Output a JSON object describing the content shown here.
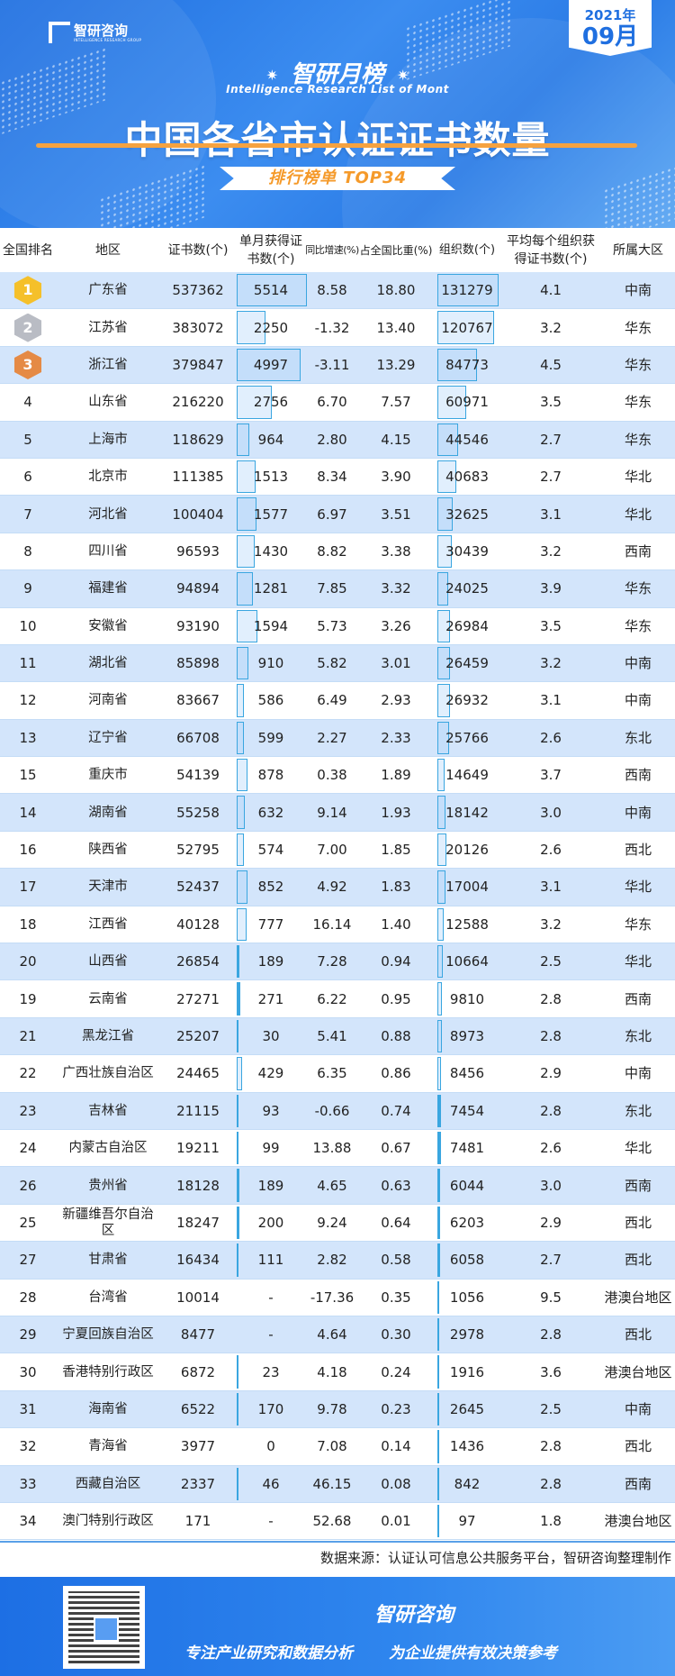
{
  "header": {
    "logo_name": "智研咨询",
    "logo_sub": "INTELLIGENCE RESEARCH GROUP",
    "badge_year": "2021年",
    "badge_month": "09月",
    "list_title": "智研月榜",
    "list_subtitle": "Intelligence Research List of Mont",
    "title": "中国各省市认证证书数量",
    "ribbon": "排行榜单  TOP34"
  },
  "columns": [
    "全国排名",
    "地区",
    "证书数(个)",
    "单月获得证书数(个)",
    "同比增速(%)",
    "占全国比重(%)",
    "组织数(个)",
    "平均每个组织获得证书数(个)",
    "所属大区"
  ],
  "column_lines": [
    [
      "全国排名"
    ],
    [
      "地区"
    ],
    [
      "证书数(个)"
    ],
    [
      "单月获得证",
      "书数(个)"
    ],
    [
      "同比增",
      "速(%)"
    ],
    [
      "占全国比重",
      "(%)"
    ],
    [
      "组织数",
      "(个)"
    ],
    [
      "平均每个组织获",
      "得证书数(个)"
    ],
    [
      "所属大区"
    ]
  ],
  "medal_colors": [
    "#f5c02a",
    "#b9bcc4",
    "#e58a45"
  ],
  "rows": [
    {
      "rank": "1",
      "region": "广东省",
      "certs": "537362",
      "monthly": "5514",
      "yoy": "8.58",
      "share": "18.80",
      "orgs": "131279",
      "avg": "4.1",
      "area": "中南"
    },
    {
      "rank": "2",
      "region": "江苏省",
      "certs": "383072",
      "monthly": "2250",
      "yoy": "-1.32",
      "share": "13.40",
      "orgs": "120767",
      "avg": "3.2",
      "area": "华东"
    },
    {
      "rank": "3",
      "region": "浙江省",
      "certs": "379847",
      "monthly": "4997",
      "yoy": "-3.11",
      "share": "13.29",
      "orgs": "84773",
      "avg": "4.5",
      "area": "华东"
    },
    {
      "rank": "4",
      "region": "山东省",
      "certs": "216220",
      "monthly": "2756",
      "yoy": "6.70",
      "share": "7.57",
      "orgs": "60971",
      "avg": "3.5",
      "area": "华东"
    },
    {
      "rank": "5",
      "region": "上海市",
      "certs": "118629",
      "monthly": "964",
      "yoy": "2.80",
      "share": "4.15",
      "orgs": "44546",
      "avg": "2.7",
      "area": "华东"
    },
    {
      "rank": "6",
      "region": "北京市",
      "certs": "111385",
      "monthly": "1513",
      "yoy": "8.34",
      "share": "3.90",
      "orgs": "40683",
      "avg": "2.7",
      "area": "华北"
    },
    {
      "rank": "7",
      "region": "河北省",
      "certs": "100404",
      "monthly": "1577",
      "yoy": "6.97",
      "share": "3.51",
      "orgs": "32625",
      "avg": "3.1",
      "area": "华北"
    },
    {
      "rank": "8",
      "region": "四川省",
      "certs": "96593",
      "monthly": "1430",
      "yoy": "8.82",
      "share": "3.38",
      "orgs": "30439",
      "avg": "3.2",
      "area": "西南"
    },
    {
      "rank": "9",
      "region": "福建省",
      "certs": "94894",
      "monthly": "1281",
      "yoy": "7.85",
      "share": "3.32",
      "orgs": "24025",
      "avg": "3.9",
      "area": "华东"
    },
    {
      "rank": "10",
      "region": "安徽省",
      "certs": "93190",
      "monthly": "1594",
      "yoy": "5.73",
      "share": "3.26",
      "orgs": "26984",
      "avg": "3.5",
      "area": "华东"
    },
    {
      "rank": "11",
      "region": "湖北省",
      "certs": "85898",
      "monthly": "910",
      "yoy": "5.82",
      "share": "3.01",
      "orgs": "26459",
      "avg": "3.2",
      "area": "中南"
    },
    {
      "rank": "12",
      "region": "河南省",
      "certs": "83667",
      "monthly": "586",
      "yoy": "6.49",
      "share": "2.93",
      "orgs": "26932",
      "avg": "3.1",
      "area": "中南"
    },
    {
      "rank": "13",
      "region": "辽宁省",
      "certs": "66708",
      "monthly": "599",
      "yoy": "2.27",
      "share": "2.33",
      "orgs": "25766",
      "avg": "2.6",
      "area": "东北"
    },
    {
      "rank": "15",
      "region": "重庆市",
      "certs": "54139",
      "monthly": "878",
      "yoy": "0.38",
      "share": "1.89",
      "orgs": "14649",
      "avg": "3.7",
      "area": "西南"
    },
    {
      "rank": "14",
      "region": "湖南省",
      "certs": "55258",
      "monthly": "632",
      "yoy": "9.14",
      "share": "1.93",
      "orgs": "18142",
      "avg": "3.0",
      "area": "中南"
    },
    {
      "rank": "16",
      "region": "陕西省",
      "certs": "52795",
      "monthly": "574",
      "yoy": "7.00",
      "share": "1.85",
      "orgs": "20126",
      "avg": "2.6",
      "area": "西北"
    },
    {
      "rank": "17",
      "region": "天津市",
      "certs": "52437",
      "monthly": "852",
      "yoy": "4.92",
      "share": "1.83",
      "orgs": "17004",
      "avg": "3.1",
      "area": "华北"
    },
    {
      "rank": "18",
      "region": "江西省",
      "certs": "40128",
      "monthly": "777",
      "yoy": "16.14",
      "share": "1.40",
      "orgs": "12588",
      "avg": "3.2",
      "area": "华东"
    },
    {
      "rank": "20",
      "region": "山西省",
      "certs": "26854",
      "monthly": "189",
      "yoy": "7.28",
      "share": "0.94",
      "orgs": "10664",
      "avg": "2.5",
      "area": "华北"
    },
    {
      "rank": "19",
      "region": "云南省",
      "certs": "27271",
      "monthly": "271",
      "yoy": "6.22",
      "share": "0.95",
      "orgs": "9810",
      "avg": "2.8",
      "area": "西南"
    },
    {
      "rank": "21",
      "region": "黑龙江省",
      "certs": "25207",
      "monthly": "30",
      "yoy": "5.41",
      "share": "0.88",
      "orgs": "8973",
      "avg": "2.8",
      "area": "东北"
    },
    {
      "rank": "22",
      "region": "广西壮族自治区",
      "certs": "24465",
      "monthly": "429",
      "yoy": "6.35",
      "share": "0.86",
      "orgs": "8456",
      "avg": "2.9",
      "area": "中南"
    },
    {
      "rank": "23",
      "region": "吉林省",
      "certs": "21115",
      "monthly": "93",
      "yoy": "-0.66",
      "share": "0.74",
      "orgs": "7454",
      "avg": "2.8",
      "area": "东北"
    },
    {
      "rank": "24",
      "region": "内蒙古自治区",
      "certs": "19211",
      "monthly": "99",
      "yoy": "13.88",
      "share": "0.67",
      "orgs": "7481",
      "avg": "2.6",
      "area": "华北"
    },
    {
      "rank": "26",
      "region": "贵州省",
      "certs": "18128",
      "monthly": "189",
      "yoy": "4.65",
      "share": "0.63",
      "orgs": "6044",
      "avg": "3.0",
      "area": "西南"
    },
    {
      "rank": "25",
      "region": "新疆维吾尔自治区",
      "certs": "18247",
      "monthly": "200",
      "yoy": "9.24",
      "share": "0.64",
      "orgs": "6203",
      "avg": "2.9",
      "area": "西北"
    },
    {
      "rank": "27",
      "region": "甘肃省",
      "certs": "16434",
      "monthly": "111",
      "yoy": "2.82",
      "share": "0.58",
      "orgs": "6058",
      "avg": "2.7",
      "area": "西北"
    },
    {
      "rank": "28",
      "region": "台湾省",
      "certs": "10014",
      "monthly": "-",
      "yoy": "-17.36",
      "share": "0.35",
      "orgs": "1056",
      "avg": "9.5",
      "area": "港澳台地区"
    },
    {
      "rank": "29",
      "region": "宁夏回族自治区",
      "certs": "8477",
      "monthly": "-",
      "yoy": "4.64",
      "share": "0.30",
      "orgs": "2978",
      "avg": "2.8",
      "area": "西北"
    },
    {
      "rank": "30",
      "region": "香港特别行政区",
      "certs": "6872",
      "monthly": "23",
      "yoy": "4.18",
      "share": "0.24",
      "orgs": "1916",
      "avg": "3.6",
      "area": "港澳台地区"
    },
    {
      "rank": "31",
      "region": "海南省",
      "certs": "6522",
      "monthly": "170",
      "yoy": "9.78",
      "share": "0.23",
      "orgs": "2645",
      "avg": "2.5",
      "area": "中南"
    },
    {
      "rank": "32",
      "region": "青海省",
      "certs": "3977",
      "monthly": "0",
      "yoy": "7.08",
      "share": "0.14",
      "orgs": "1436",
      "avg": "2.8",
      "area": "西北"
    },
    {
      "rank": "33",
      "region": "西藏自治区",
      "certs": "2337",
      "monthly": "46",
      "yoy": "46.15",
      "share": "0.08",
      "orgs": "842",
      "avg": "2.8",
      "area": "西南"
    },
    {
      "rank": "34",
      "region": "澳门特别行政区",
      "certs": "171",
      "monthly": "-",
      "yoy": "52.68",
      "share": "0.01",
      "orgs": "97",
      "avg": "1.8",
      "area": "港澳台地区"
    }
  ],
  "source": "数据来源：认证认可信息公共服务平台，智研咨询整理制作",
  "footer": {
    "title": "智研咨询",
    "slogan_left": "专注产业研究和数据分析",
    "slogan_right": "为企业提供有效决策参考"
  }
}
